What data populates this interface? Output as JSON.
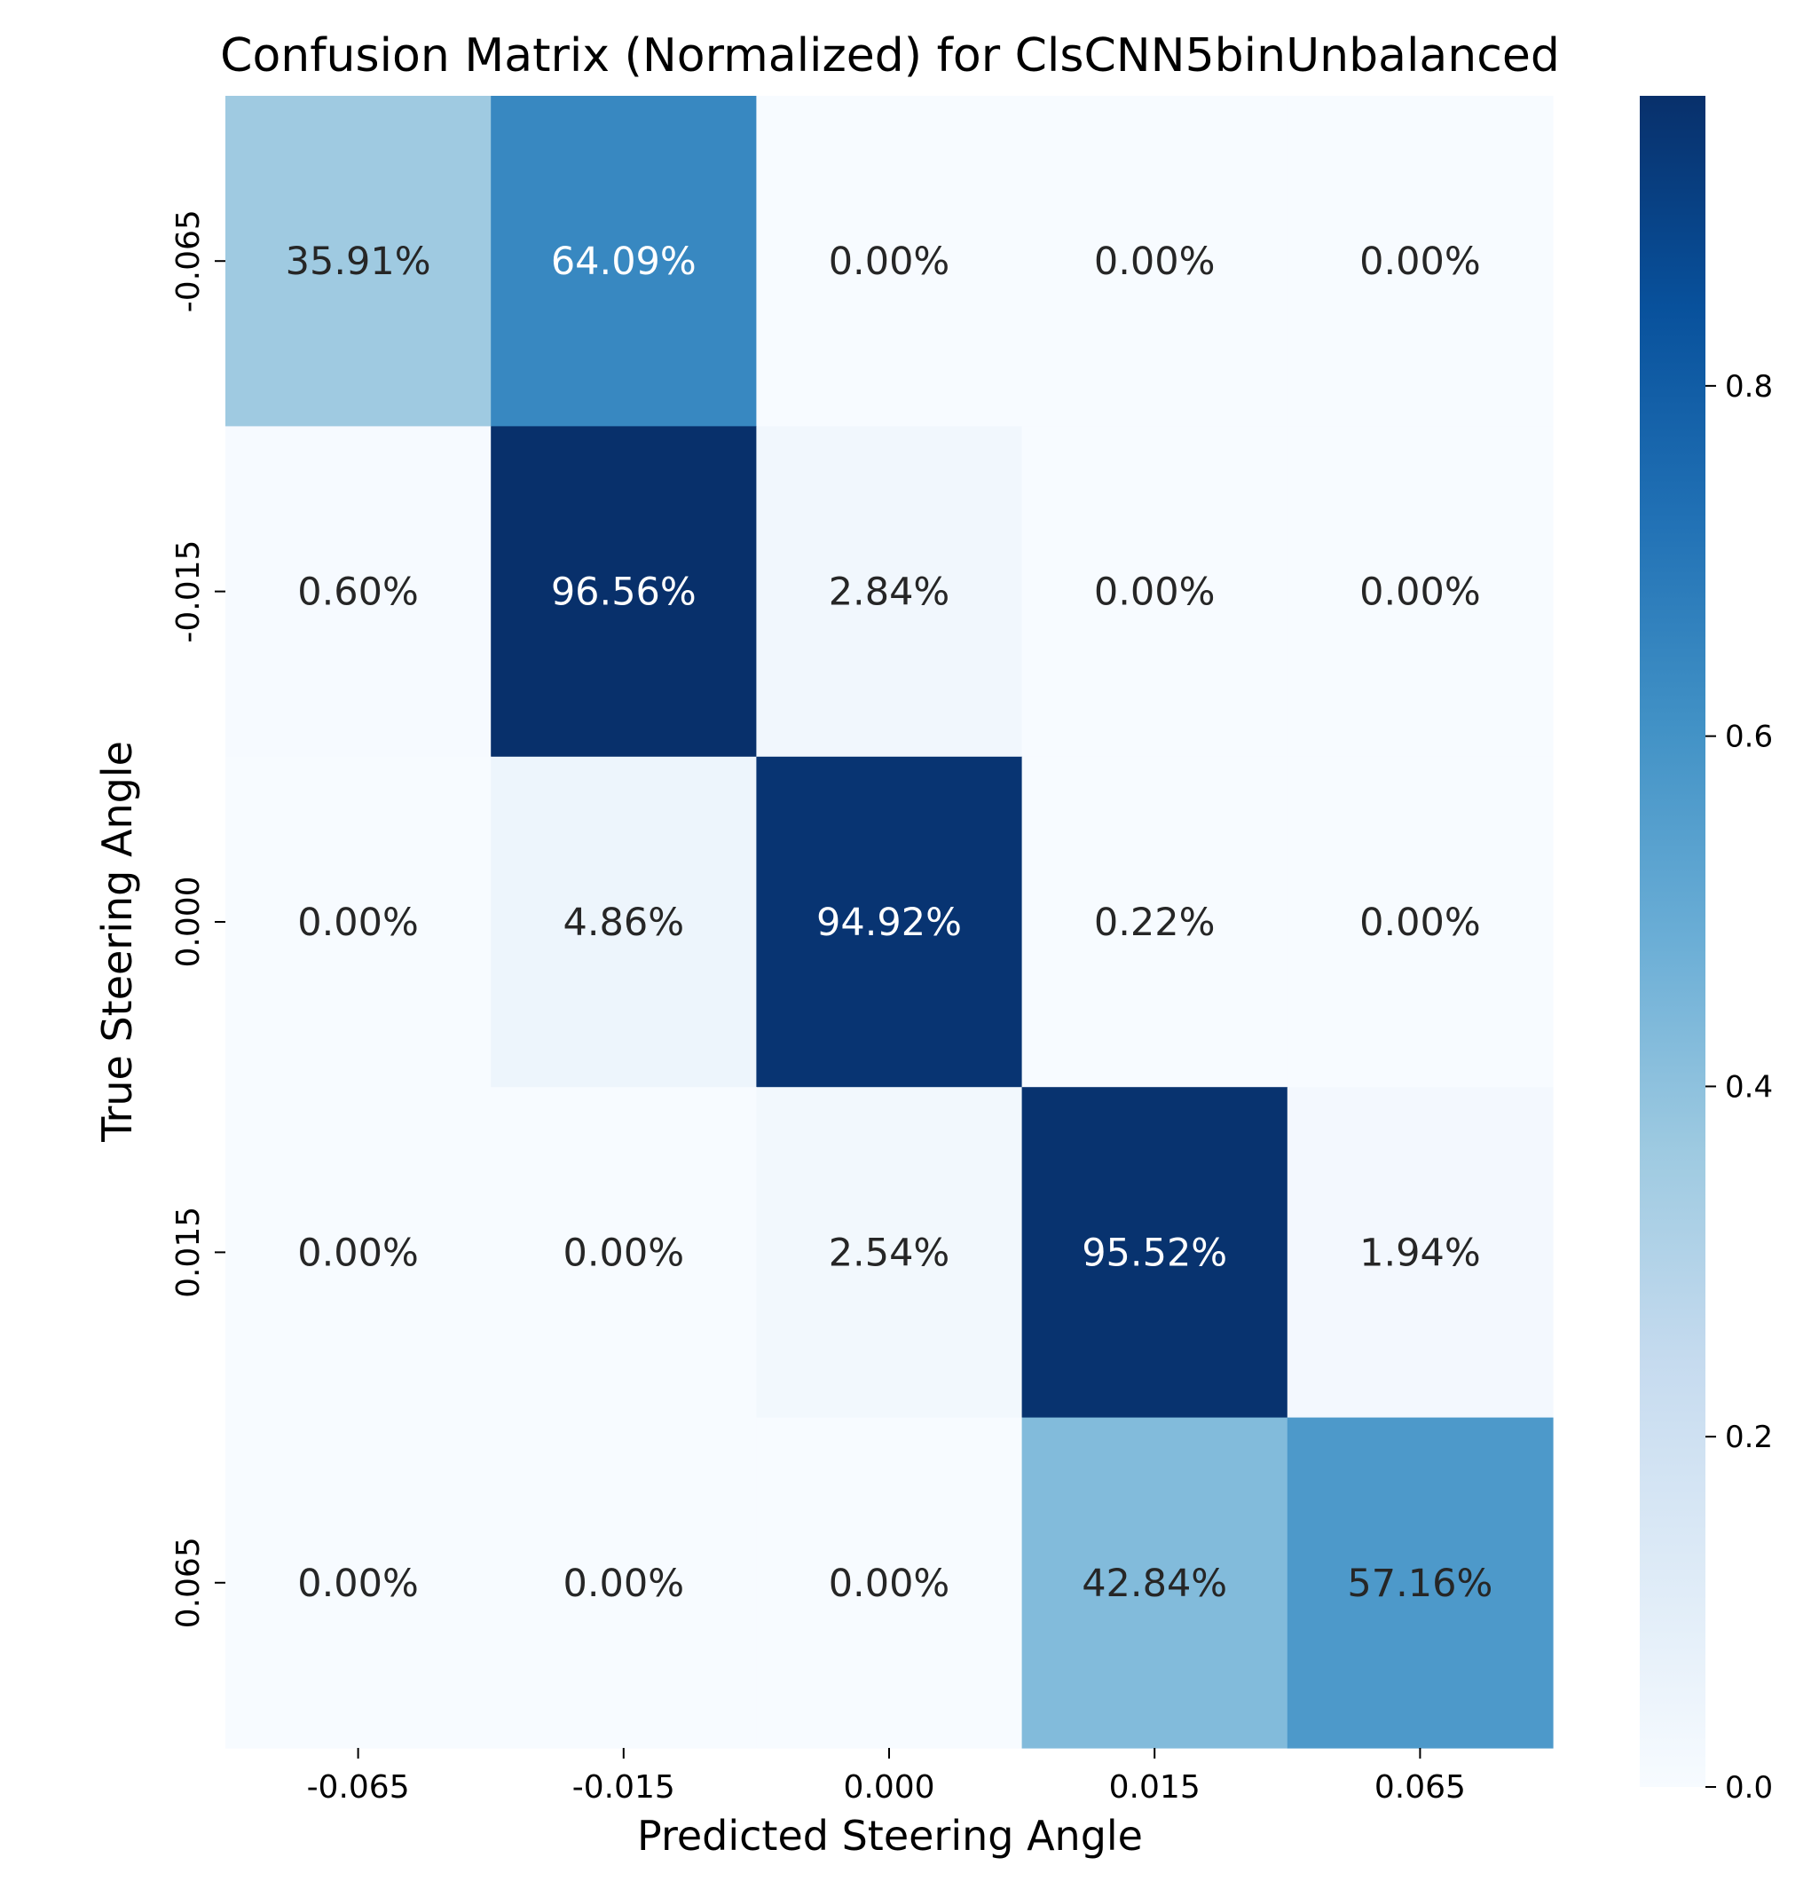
{
  "chart_data": {
    "type": "heatmap",
    "title": "Confusion Matrix (Normalized) for ClsCNN5binUnbalanced",
    "xlabel": "Predicted Steering Angle",
    "ylabel": "True Steering Angle",
    "x_categories": [
      "-0.065",
      "-0.015",
      "0.000",
      "0.015",
      "0.065"
    ],
    "y_categories": [
      "-0.065",
      "-0.015",
      "0.000",
      "0.015",
      "0.065"
    ],
    "values": [
      [
        0.3591,
        0.6409,
        0.0,
        0.0,
        0.0
      ],
      [
        0.006,
        0.9656,
        0.0284,
        0.0,
        0.0
      ],
      [
        0.0,
        0.0486,
        0.9492,
        0.0022,
        0.0
      ],
      [
        0.0,
        0.0,
        0.0254,
        0.9552,
        0.0194
      ],
      [
        0.0,
        0.0,
        0.0,
        0.4284,
        0.5716
      ]
    ],
    "cell_labels": [
      [
        "35.91%",
        "64.09%",
        "0.00%",
        "0.00%",
        "0.00%"
      ],
      [
        "0.60%",
        "96.56%",
        "2.84%",
        "0.00%",
        "0.00%"
      ],
      [
        "0.00%",
        "4.86%",
        "94.92%",
        "0.22%",
        "0.00%"
      ],
      [
        "0.00%",
        "0.00%",
        "2.54%",
        "95.52%",
        "1.94%"
      ],
      [
        "0.00%",
        "0.00%",
        "0.00%",
        "42.84%",
        "57.16%"
      ]
    ],
    "colormap": "Blues",
    "colorbar": {
      "range": [
        0,
        0.9656
      ],
      "ticks": [
        0.0,
        0.2,
        0.4,
        0.6,
        0.8
      ],
      "tick_labels": [
        "0.0",
        "0.2",
        "0.4",
        "0.6",
        "0.8"
      ]
    },
    "colors": {
      "blues_low": "#f7fbff",
      "blues_high": "#08306b",
      "text_dark": "#262626",
      "text_light": "#ffffff"
    }
  }
}
